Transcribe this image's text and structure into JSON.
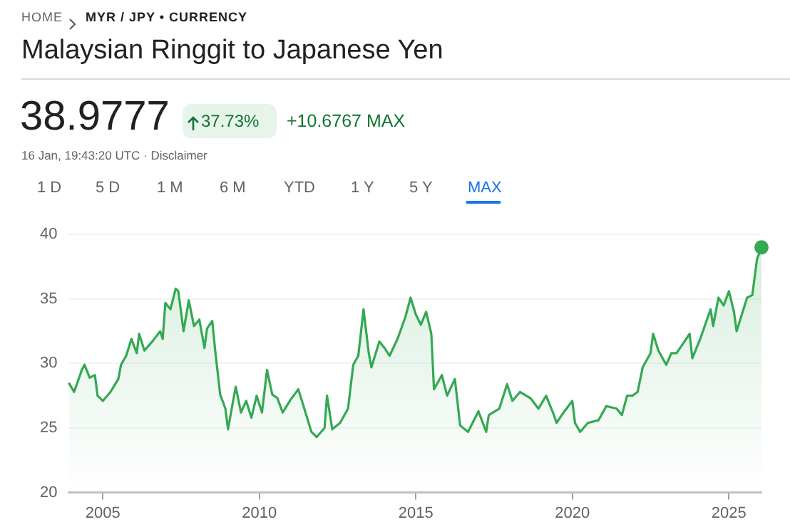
{
  "chart_data": {
    "type": "area",
    "title": "Malaysian Ringgit to Japanese Yen",
    "annotations": [
      "HOME",
      "MYR / JPY • CURRENCY",
      "38.9777",
      "37.73%",
      "+10.6767 MAX",
      "16 Jan, 19:43:20 UTC · Disclaimer",
      "1 D",
      "5 D",
      "1 M",
      "6 M",
      "YTD",
      "1 Y",
      "5 Y",
      "MAX"
    ],
    "x": [
      "2003-12",
      "2004-02",
      "2004-05",
      "2004-06",
      "2004-08",
      "2004-10",
      "2004-11",
      "2005-01",
      "2005-04",
      "2005-07",
      "2005-08",
      "2005-10",
      "2005-12",
      "2006-02",
      "2006-03",
      "2006-05",
      "2006-08",
      "2006-11",
      "2006-12",
      "2007-01",
      "2007-03",
      "2007-05",
      "2007-06",
      "2007-08",
      "2007-10",
      "2007-12",
      "2008-02",
      "2008-04",
      "2008-05",
      "2008-07",
      "2008-08",
      "2008-10",
      "2008-12",
      "2009-01",
      "2009-03",
      "2009-04",
      "2009-06",
      "2009-08",
      "2009-10",
      "2009-12",
      "2010-02",
      "2010-04",
      "2010-06",
      "2010-08",
      "2010-10",
      "2011-01",
      "2011-04",
      "2011-06",
      "2011-09",
      "2011-11",
      "2012-02",
      "2012-03",
      "2012-05",
      "2012-08",
      "2012-11",
      "2013-01",
      "2013-03",
      "2013-05",
      "2013-07",
      "2013-08",
      "2013-11",
      "2014-01",
      "2014-03",
      "2014-06",
      "2014-09",
      "2014-11",
      "2015-01",
      "2015-03",
      "2015-05",
      "2015-07",
      "2015-08",
      "2015-11",
      "2016-01",
      "2016-04",
      "2016-06",
      "2016-09",
      "2017-01",
      "2017-04",
      "2017-05",
      "2017-09",
      "2017-12",
      "2018-02",
      "2018-05",
      "2018-09",
      "2018-12",
      "2019-03",
      "2019-06",
      "2019-07",
      "2019-10",
      "2020-01",
      "2020-02",
      "2020-04",
      "2020-07",
      "2020-11",
      "2021-02",
      "2021-06",
      "2021-08",
      "2021-10",
      "2021-12",
      "2022-02",
      "2022-04",
      "2022-07",
      "2022-08",
      "2022-10",
      "2023-01",
      "2023-03",
      "2023-05",
      "2023-08",
      "2023-10",
      "2023-11",
      "2024-02",
      "2024-06",
      "2024-07",
      "2024-09",
      "2024-11",
      "2025-01",
      "2025-03",
      "2025-04",
      "2025-06",
      "2025-08",
      "2025-10",
      "2025-11-25",
      "2026-01-16"
    ],
    "series": [
      {
        "color": "#34a853",
        "marker": "none",
        "values": [
          28.5,
          27.8,
          29.5,
          29.9,
          28.9,
          29.1,
          27.5,
          27.1,
          27.8,
          28.8,
          29.9,
          30.6,
          31.9,
          30.8,
          32.3,
          31.0,
          31.7,
          32.5,
          31.9,
          34.7,
          34.2,
          35.8,
          35.6,
          32.5,
          34.9,
          32.9,
          33.4,
          31.2,
          32.7,
          33.3,
          31.2,
          27.6,
          26.5,
          24.9,
          27.1,
          28.2,
          26.2,
          27.1,
          25.8,
          27.5,
          26.2,
          29.5,
          27.6,
          27.3,
          26.2,
          27.2,
          28.0,
          26.7,
          24.7,
          24.3,
          25.0,
          27.5,
          24.9,
          25.4,
          26.5,
          29.9,
          30.6,
          34.2,
          30.8,
          29.7,
          31.7,
          31.2,
          30.6,
          31.9,
          33.6,
          35.1,
          33.8,
          33.0,
          34.0,
          32.3,
          28.0,
          29.1,
          27.5,
          28.8,
          25.2,
          24.7,
          26.3,
          24.7,
          26.0,
          26.5,
          28.4,
          27.1,
          27.8,
          27.3,
          26.5,
          27.5,
          26.0,
          25.4,
          26.3,
          27.1,
          25.4,
          24.7,
          25.4,
          25.6,
          26.7,
          26.5,
          26.0,
          27.5,
          27.5,
          27.8,
          29.7,
          30.8,
          32.3,
          31.0,
          29.9,
          30.8,
          30.8,
          31.7,
          32.3,
          30.4,
          31.9,
          34.2,
          32.9,
          35.1,
          34.5,
          35.6,
          34.0,
          32.5,
          33.8,
          35.1,
          35.3,
          38.1,
          39.0
        ]
      },
      {
        "type": "scatter",
        "color": "#34a853",
        "marker": "circle",
        "x": [
          "2026-01-16"
        ],
        "values": [
          39.0
        ]
      }
    ],
    "xlim": [
      "2003-12",
      "2026-01-16"
    ],
    "xticks": [
      "2005",
      "2010",
      "2015",
      "2020",
      "2025"
    ],
    "ylim": [
      20,
      40
    ],
    "yticks": [
      20,
      25,
      30,
      35,
      40
    ],
    "grid": "y",
    "legend": false
  }
}
